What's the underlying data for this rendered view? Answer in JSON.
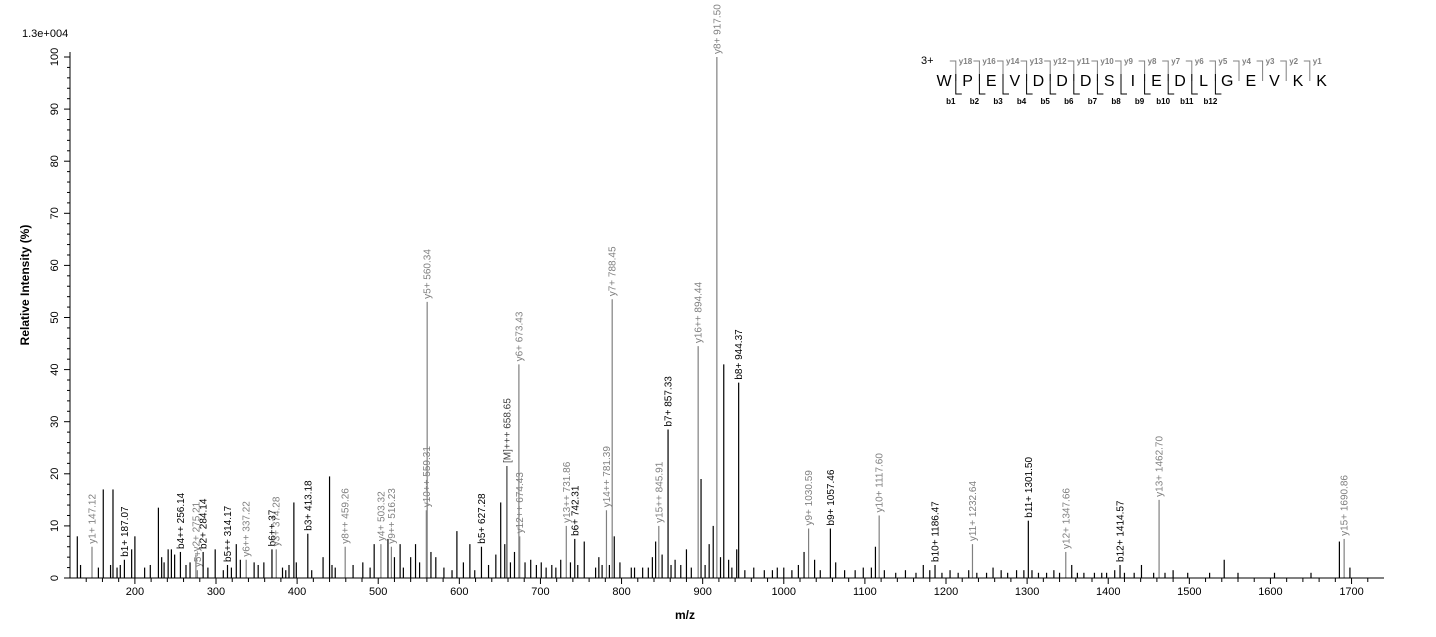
{
  "chart_data": {
    "type": "bar",
    "title": "",
    "intensity_scale": "1.3e+004",
    "xlabel": "m/z",
    "ylabel": "Relative   Intensity (%)",
    "xlim": [
      120,
      1740
    ],
    "ylim": [
      0,
      100
    ],
    "xticks": [
      200,
      300,
      400,
      500,
      600,
      700,
      800,
      900,
      1000,
      1100,
      1200,
      1300,
      1400,
      1500,
      1600,
      1700
    ],
    "yticks": [
      0,
      10,
      20,
      30,
      40,
      50,
      60,
      70,
      80,
      90,
      100
    ],
    "colors": {
      "b_ion": "#000000",
      "y_ion": "#808080",
      "other_peak": "#000000",
      "precursor": "#404040"
    },
    "labeled_peaks": [
      {
        "mz": 147.12,
        "intensity": 6.0,
        "label": "y1+ 147.12",
        "ion": "y"
      },
      {
        "mz": 187.07,
        "intensity": 3.5,
        "label": "b1+ 187.07",
        "ion": "b"
      },
      {
        "mz": 256.14,
        "intensity": 5.0,
        "label": "b4++ 256.14",
        "ion": "b"
      },
      {
        "mz": 275.21,
        "intensity": 4.5,
        "label": "y2+ 275.21",
        "ion": "y"
      },
      {
        "mz": 277.0,
        "intensity": 1.5,
        "label": "y5+",
        "ion": "y"
      },
      {
        "mz": 284.14,
        "intensity": 5.0,
        "label": "b2+ 284.14",
        "ion": "b"
      },
      {
        "mz": 314.17,
        "intensity": 2.5,
        "label": "b5++ 314.17",
        "ion": "b"
      },
      {
        "mz": 337.22,
        "intensity": 3.5,
        "label": "y6++ 337.22",
        "ion": "y"
      },
      {
        "mz": 369.0,
        "intensity": 5.5,
        "label": "b6++ 37",
        "ion": "b"
      },
      {
        "mz": 374.28,
        "intensity": 5.5,
        "label": "y3+ 374.28",
        "ion": "y"
      },
      {
        "mz": 413.18,
        "intensity": 8.5,
        "label": "b3+ 413.18",
        "ion": "b"
      },
      {
        "mz": 459.26,
        "intensity": 6.0,
        "label": "y8++ 459.26",
        "ion": "y"
      },
      {
        "mz": 503.32,
        "intensity": 6.5,
        "label": "y4+ 503.32",
        "ion": "y"
      },
      {
        "mz": 516.23,
        "intensity": 6.0,
        "label": "y9++ 516.23",
        "ion": "y"
      },
      {
        "mz": 559.31,
        "intensity": 13.0,
        "label": "y10++ 559.31",
        "ion": "y"
      },
      {
        "mz": 560.34,
        "intensity": 53.0,
        "label": "y5+ 560.34",
        "ion": "y"
      },
      {
        "mz": 627.28,
        "intensity": 6.0,
        "label": "b5+ 627.28",
        "ion": "b"
      },
      {
        "mz": 658.65,
        "intensity": 21.5,
        "label": "[M]+++ 658.65",
        "ion": "precursor"
      },
      {
        "mz": 673.43,
        "intensity": 41.0,
        "label": "y6+ 673.43",
        "ion": "y"
      },
      {
        "mz": 674.43,
        "intensity": 8.0,
        "label": "y12++ 674.43",
        "ion": "y"
      },
      {
        "mz": 731.86,
        "intensity": 10.0,
        "label": "y13++ 731.86",
        "ion": "y"
      },
      {
        "mz": 742.31,
        "intensity": 7.5,
        "label": "b6+ 742.31",
        "ion": "b"
      },
      {
        "mz": 781.39,
        "intensity": 13.0,
        "label": "y14++ 781.39",
        "ion": "y"
      },
      {
        "mz": 788.45,
        "intensity": 53.5,
        "label": "y7+ 788.45",
        "ion": "y"
      },
      {
        "mz": 845.91,
        "intensity": 10.0,
        "label": "y15++ 845.91",
        "ion": "y"
      },
      {
        "mz": 857.33,
        "intensity": 28.5,
        "label": "b7+ 857.33",
        "ion": "b"
      },
      {
        "mz": 894.44,
        "intensity": 44.5,
        "label": "y16++ 894.44",
        "ion": "y"
      },
      {
        "mz": 917.5,
        "intensity": 100.0,
        "label": "y8+ 917.50",
        "ion": "y"
      },
      {
        "mz": 944.37,
        "intensity": 37.5,
        "label": "b8+ 944.37",
        "ion": "b"
      },
      {
        "mz": 1030.59,
        "intensity": 9.5,
        "label": "y9+ 1030.59",
        "ion": "y"
      },
      {
        "mz": 1057.46,
        "intensity": 9.5,
        "label": "b9+ 1057.46",
        "ion": "b"
      },
      {
        "mz": 1117.6,
        "intensity": 12.0,
        "label": "y10+ 1117.60",
        "ion": "y"
      },
      {
        "mz": 1186.47,
        "intensity": 2.5,
        "label": "b10+ 1186.47",
        "ion": "b"
      },
      {
        "mz": 1232.64,
        "intensity": 6.5,
        "label": "y11+ 1232.64",
        "ion": "y"
      },
      {
        "mz": 1301.5,
        "intensity": 11.0,
        "label": "b11+ 1301.50",
        "ion": "b"
      },
      {
        "mz": 1347.66,
        "intensity": 5.0,
        "label": "y12+ 1347.66",
        "ion": "y"
      },
      {
        "mz": 1414.57,
        "intensity": 2.5,
        "label": "b12+ 1414.57",
        "ion": "b"
      },
      {
        "mz": 1462.7,
        "intensity": 15.0,
        "label": "y13+ 1462.70",
        "ion": "y"
      },
      {
        "mz": 1690.86,
        "intensity": 7.5,
        "label": "y15+ 1690.86",
        "ion": "y"
      }
    ],
    "unlabeled_peaks": [
      [
        129,
        8.0
      ],
      [
        133,
        2.5
      ],
      [
        155,
        2.0
      ],
      [
        161,
        17.0
      ],
      [
        170,
        2.5
      ],
      [
        173,
        17.0
      ],
      [
        178,
        2.0
      ],
      [
        182,
        2.5
      ],
      [
        196,
        5.5
      ],
      [
        200,
        8.0
      ],
      [
        212,
        2.0
      ],
      [
        219,
        2.5
      ],
      [
        229,
        13.5
      ],
      [
        233,
        4.0
      ],
      [
        236,
        3.0
      ],
      [
        241,
        5.5
      ],
      [
        245,
        5.5
      ],
      [
        249,
        4.5
      ],
      [
        263,
        2.5
      ],
      [
        268,
        3.0
      ],
      [
        290,
        2.0
      ],
      [
        299,
        5.5
      ],
      [
        309,
        1.5
      ],
      [
        319,
        2.0
      ],
      [
        325,
        6.5
      ],
      [
        330,
        3.5
      ],
      [
        347,
        3.0
      ],
      [
        352,
        2.5
      ],
      [
        359,
        3.0
      ],
      [
        382,
        2.0
      ],
      [
        386,
        1.5
      ],
      [
        390,
        2.5
      ],
      [
        396,
        14.5
      ],
      [
        399,
        3.0
      ],
      [
        418,
        1.5
      ],
      [
        432,
        4.0
      ],
      [
        440,
        19.5
      ],
      [
        443,
        2.5
      ],
      [
        447,
        2.0
      ],
      [
        469,
        2.5
      ],
      [
        481,
        3.0
      ],
      [
        490,
        2.0
      ],
      [
        495,
        6.5
      ],
      [
        512,
        7.5
      ],
      [
        520,
        4.0
      ],
      [
        527,
        6.5
      ],
      [
        531,
        2.0
      ],
      [
        540,
        4.0
      ],
      [
        546,
        6.5
      ],
      [
        551,
        3.0
      ],
      [
        565,
        5.0
      ],
      [
        571,
        4.0
      ],
      [
        581,
        2.0
      ],
      [
        591,
        1.5
      ],
      [
        597,
        9.0
      ],
      [
        605,
        3.0
      ],
      [
        613,
        6.5
      ],
      [
        619,
        1.5
      ],
      [
        636,
        2.5
      ],
      [
        645,
        4.5
      ],
      [
        651,
        14.5
      ],
      [
        656,
        6.5
      ],
      [
        663,
        3.0
      ],
      [
        668,
        5.0
      ],
      [
        681,
        3.0
      ],
      [
        688,
        3.5
      ],
      [
        695,
        2.5
      ],
      [
        701,
        3.0
      ],
      [
        707,
        2.0
      ],
      [
        714,
        2.5
      ],
      [
        719,
        2.0
      ],
      [
        725,
        3.5
      ],
      [
        737,
        3.0
      ],
      [
        746,
        2.5
      ],
      [
        754,
        7.0
      ],
      [
        768,
        2.0
      ],
      [
        772,
        4.0
      ],
      [
        776,
        2.5
      ],
      [
        785,
        2.5
      ],
      [
        791,
        8.0
      ],
      [
        798,
        3.0
      ],
      [
        812,
        2.0
      ],
      [
        816,
        2.0
      ],
      [
        826,
        2.0
      ],
      [
        833,
        2.0
      ],
      [
        838,
        4.0
      ],
      [
        842,
        7.0
      ],
      [
        850,
        4.5
      ],
      [
        861,
        2.5
      ],
      [
        866,
        3.5
      ],
      [
        873,
        2.5
      ],
      [
        880,
        5.5
      ],
      [
        886,
        2.0
      ],
      [
        898,
        19.0
      ],
      [
        903,
        2.5
      ],
      [
        908,
        6.5
      ],
      [
        913,
        10.0
      ],
      [
        922,
        4.0
      ],
      [
        926,
        41.0
      ],
      [
        932,
        3.5
      ],
      [
        936,
        2.0
      ],
      [
        942,
        5.5
      ],
      [
        952,
        1.5
      ],
      [
        963,
        2.0
      ],
      [
        976,
        1.5
      ],
      [
        986,
        1.5
      ],
      [
        992,
        2.0
      ],
      [
        1000,
        2.0
      ],
      [
        1010,
        1.5
      ],
      [
        1018,
        2.5
      ],
      [
        1025,
        5.0
      ],
      [
        1038,
        3.5
      ],
      [
        1045,
        1.5
      ],
      [
        1064,
        3.0
      ],
      [
        1075,
        1.5
      ],
      [
        1088,
        1.5
      ],
      [
        1098,
        2.0
      ],
      [
        1108,
        2.0
      ],
      [
        1113,
        6.0
      ],
      [
        1124,
        1.5
      ],
      [
        1138,
        1.0
      ],
      [
        1150,
        1.5
      ],
      [
        1163,
        1.0
      ],
      [
        1172,
        2.5
      ],
      [
        1180,
        1.5
      ],
      [
        1195,
        1.0
      ],
      [
        1205,
        1.5
      ],
      [
        1215,
        1.0
      ],
      [
        1228,
        1.5
      ],
      [
        1238,
        1.0
      ],
      [
        1250,
        1.0
      ],
      [
        1258,
        2.0
      ],
      [
        1268,
        1.5
      ],
      [
        1276,
        1.0
      ],
      [
        1287,
        1.5
      ],
      [
        1296,
        1.5
      ],
      [
        1306,
        1.5
      ],
      [
        1314,
        1.0
      ],
      [
        1324,
        1.0
      ],
      [
        1333,
        1.5
      ],
      [
        1340,
        1.0
      ],
      [
        1355,
        2.5
      ],
      [
        1362,
        1.0
      ],
      [
        1370,
        1.0
      ],
      [
        1383,
        1.0
      ],
      [
        1392,
        1.0
      ],
      [
        1398,
        1.0
      ],
      [
        1408,
        1.5
      ],
      [
        1420,
        1.0
      ],
      [
        1432,
        1.0
      ],
      [
        1441,
        2.5
      ],
      [
        1456,
        1.0
      ],
      [
        1470,
        1.0
      ],
      [
        1480,
        1.5
      ],
      [
        1498,
        1.0
      ],
      [
        1525,
        1.0
      ],
      [
        1543,
        3.5
      ],
      [
        1560,
        1.0
      ],
      [
        1605,
        1.0
      ],
      [
        1650,
        1.0
      ],
      [
        1685,
        7.0
      ],
      [
        1698,
        2.0
      ]
    ],
    "sequence": {
      "charge": "3+",
      "residues": [
        "W",
        "P",
        "E",
        "V",
        "D",
        "D",
        "D",
        "S",
        "I",
        "E",
        "D",
        "L",
        "G",
        "E",
        "V",
        "K",
        "K"
      ],
      "y_labels": [
        "y18",
        "y16",
        "y14",
        "y13",
        "y12",
        "y11",
        "y10",
        "y9",
        "y8",
        "y7",
        "y6",
        "y5",
        "y4",
        "y3",
        "y2",
        "y1"
      ],
      "b_labels": [
        "b1",
        "b2",
        "b3",
        "b4",
        "b5",
        "b6",
        "b7",
        "b8",
        "b9",
        "b10",
        "b11",
        "b12"
      ]
    }
  }
}
